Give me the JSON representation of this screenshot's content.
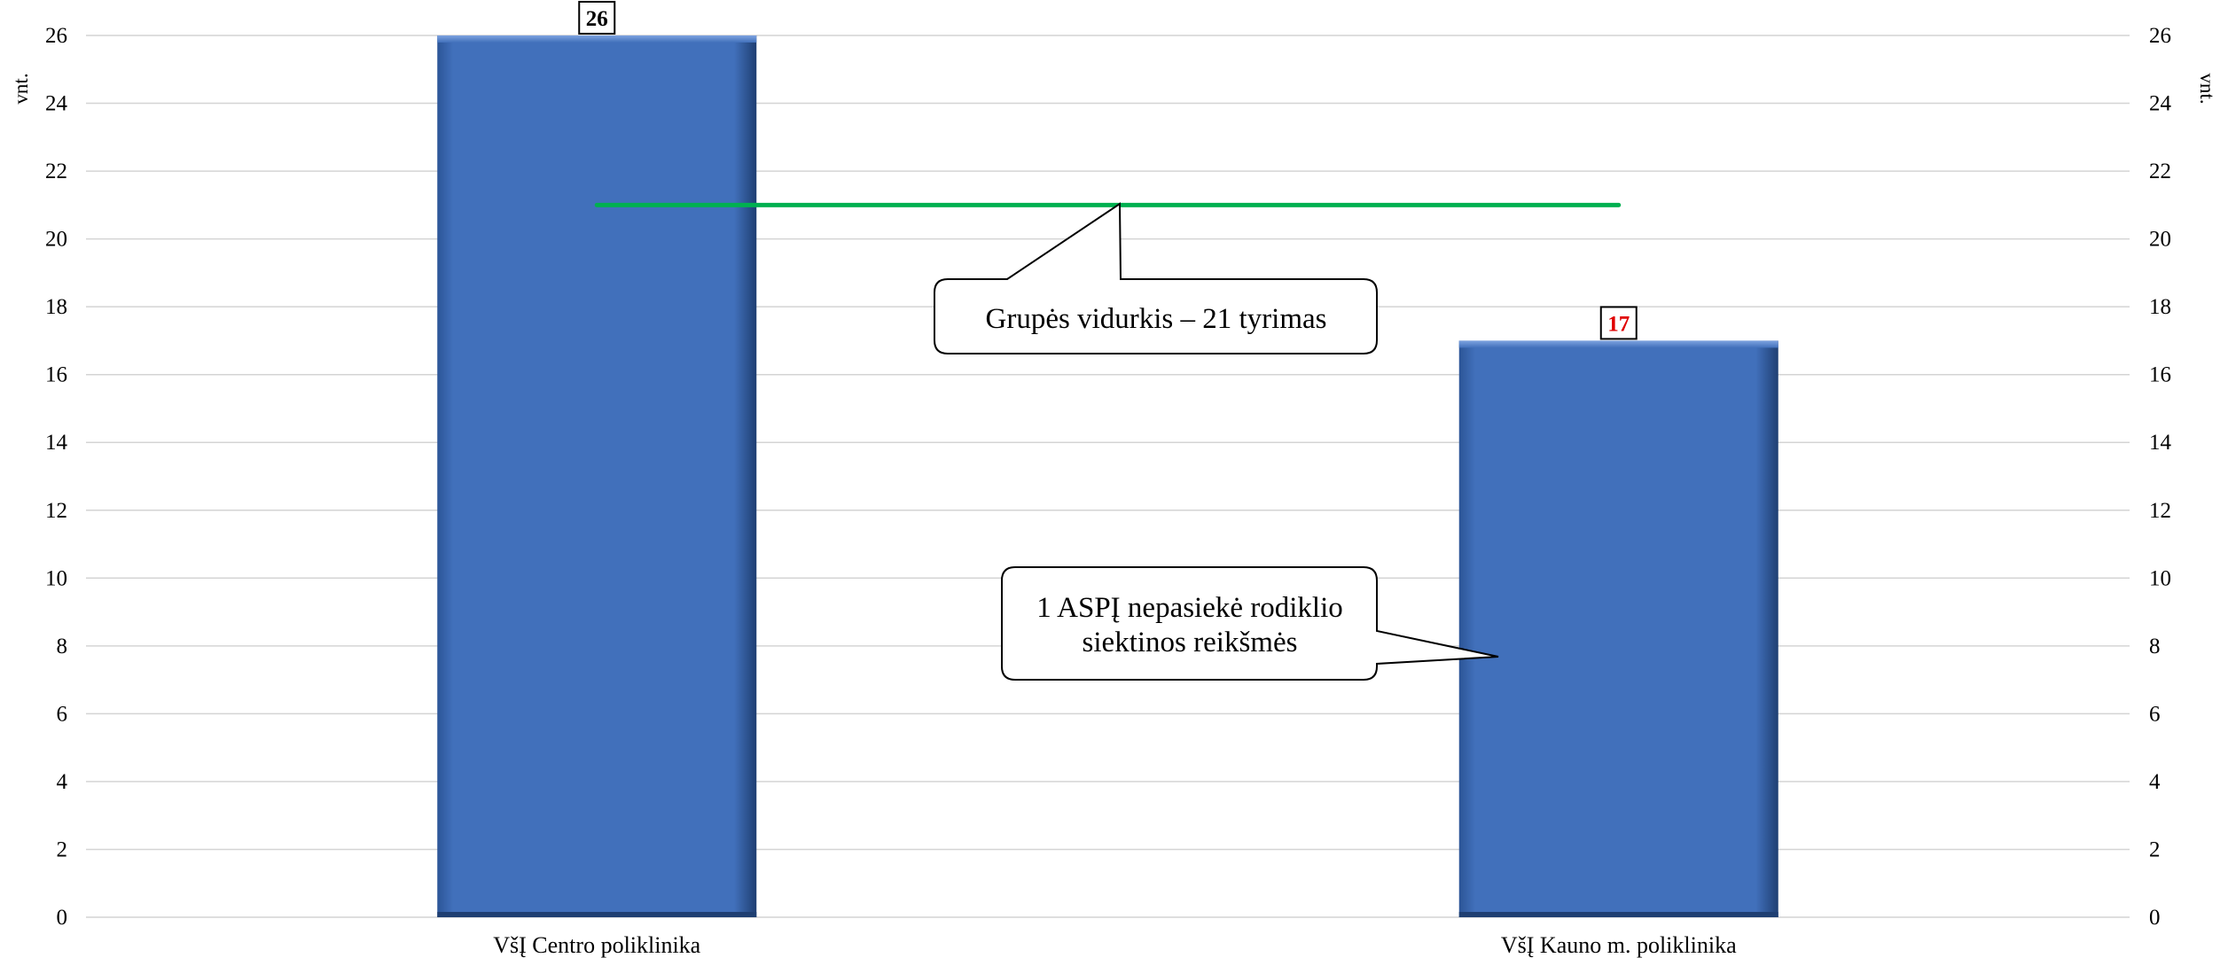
{
  "chart_data": {
    "type": "bar",
    "categories": [
      "VšĮ Centro poliklinika",
      "VšĮ Kauno m. poliklinika"
    ],
    "values": [
      26,
      17
    ],
    "value_label_colors": [
      "#000000",
      "#e00000"
    ],
    "average_line": {
      "value": 21,
      "color": "#00b050"
    },
    "ylabel_left": "vnt.",
    "ylabel_right": "vnt.",
    "ylim": [
      0,
      26
    ],
    "y_ticks": [
      0,
      2,
      4,
      6,
      8,
      10,
      12,
      14,
      16,
      18,
      20,
      22,
      24,
      26
    ],
    "grid": true,
    "bar_color": "#4170bb",
    "annotations": [
      {
        "lines": [
          "Grupės vidurkis – 21 tyrimas"
        ]
      },
      {
        "lines": [
          "1 ASPĮ nepasiekė rodiklio",
          "siektinos reikšmės"
        ]
      }
    ]
  }
}
